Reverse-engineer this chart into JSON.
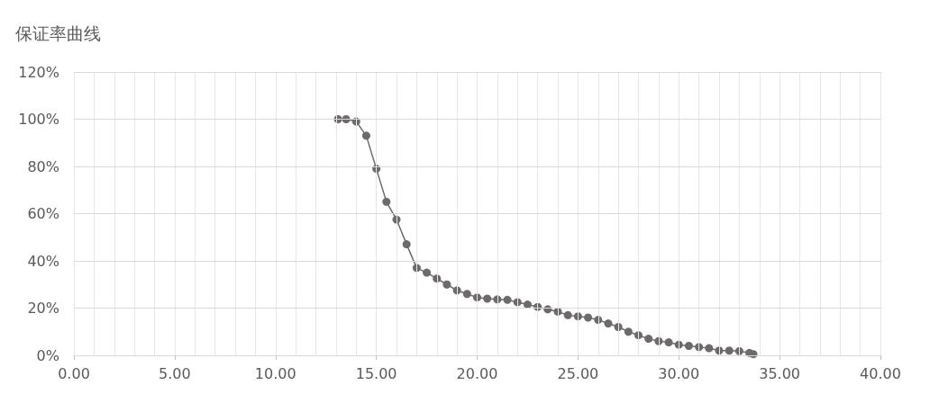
{
  "chart_data": {
    "type": "line",
    "title": "保证率曲线",
    "marker": "circle",
    "line_style": "solid",
    "grid": true,
    "xlim": [
      0,
      40
    ],
    "xticks": [
      {
        "value": 0,
        "label": "0.00"
      },
      {
        "value": 1,
        "label": null
      },
      {
        "value": 2,
        "label": null
      },
      {
        "value": 3,
        "label": null
      },
      {
        "value": 4,
        "label": null
      },
      {
        "value": 5,
        "label": "5.00"
      },
      {
        "value": 6,
        "label": null
      },
      {
        "value": 7,
        "label": null
      },
      {
        "value": 8,
        "label": null
      },
      {
        "value": 9,
        "label": null
      },
      {
        "value": 10,
        "label": "10.00"
      },
      {
        "value": 11,
        "label": null
      },
      {
        "value": 12,
        "label": null
      },
      {
        "value": 13,
        "label": null
      },
      {
        "value": 14,
        "label": null
      },
      {
        "value": 15,
        "label": "15.00"
      },
      {
        "value": 16,
        "label": null
      },
      {
        "value": 17,
        "label": null
      },
      {
        "value": 18,
        "label": null
      },
      {
        "value": 19,
        "label": null
      },
      {
        "value": 20,
        "label": "20.00"
      },
      {
        "value": 21,
        "label": null
      },
      {
        "value": 22,
        "label": null
      },
      {
        "value": 23,
        "label": null
      },
      {
        "value": 24,
        "label": null
      },
      {
        "value": 25,
        "label": "25.00"
      },
      {
        "value": 26,
        "label": null
      },
      {
        "value": 27,
        "label": null
      },
      {
        "value": 28,
        "label": null
      },
      {
        "value": 29,
        "label": null
      },
      {
        "value": 30,
        "label": "30.00"
      },
      {
        "value": 31,
        "label": null
      },
      {
        "value": 32,
        "label": null
      },
      {
        "value": 33,
        "label": null
      },
      {
        "value": 34,
        "label": null
      },
      {
        "value": 35,
        "label": "35.00"
      },
      {
        "value": 36,
        "label": null
      },
      {
        "value": 37,
        "label": null
      },
      {
        "value": 38,
        "label": null
      },
      {
        "value": 39,
        "label": null
      },
      {
        "value": 40,
        "label": "40.00"
      }
    ],
    "ylim": [
      0,
      1.2
    ],
    "yticks": [
      {
        "value": 0,
        "label": "0%"
      },
      {
        "value": 0.2,
        "label": "20%"
      },
      {
        "value": 0.4,
        "label": "40%"
      },
      {
        "value": 0.6,
        "label": "60%"
      },
      {
        "value": 0.8,
        "label": "80%"
      },
      {
        "value": 1,
        "label": "100%"
      },
      {
        "value": 1.2,
        "label": "120%"
      }
    ],
    "series": [
      {
        "color": "#6e6a6c",
        "x": [
          13.1,
          13.5,
          14,
          14.5,
          15,
          15.5,
          16,
          16.5,
          17,
          17.5,
          18,
          18.5,
          19,
          19.5,
          20,
          20.5,
          21,
          21.5,
          22,
          22.5,
          23,
          23.5,
          24,
          24.5,
          25,
          25.5,
          26,
          26.5,
          27,
          27.5,
          28,
          28.5,
          29,
          29.5,
          30,
          30.5,
          31,
          31.5,
          32,
          32.5,
          33,
          33.5,
          33.7
        ],
        "values": [
          1,
          1,
          0.99,
          0.93,
          0.79,
          0.65,
          0.575,
          0.47,
          0.37,
          0.35,
          0.325,
          0.3,
          0.275,
          0.26,
          0.245,
          0.24,
          0.237,
          0.235,
          0.225,
          0.215,
          0.205,
          0.195,
          0.185,
          0.17,
          0.165,
          0.16,
          0.15,
          0.135,
          0.12,
          0.1,
          0.085,
          0.07,
          0.06,
          0.055,
          0.045,
          0.04,
          0.035,
          0.03,
          0.02,
          0.02,
          0.018,
          0.01,
          0.005
        ]
      }
    ]
  }
}
